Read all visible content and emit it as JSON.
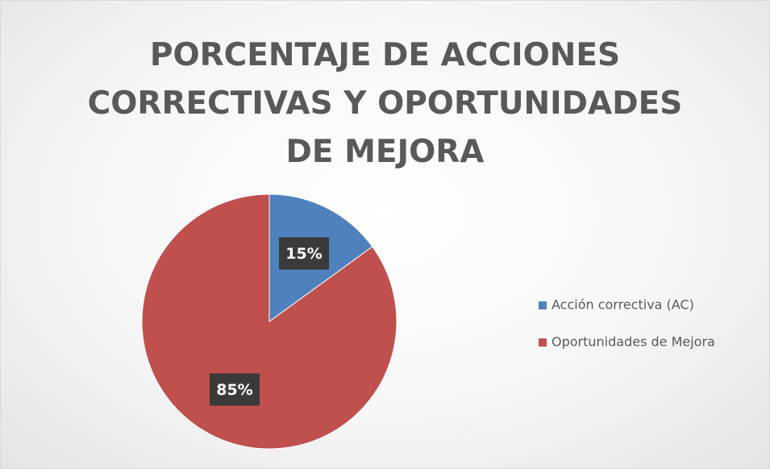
{
  "chart_data": {
    "type": "pie",
    "title": "PORCENTAJE DE ACCIONES CORRECTIVAS Y OPORTUNIDADES DE MEJORA",
    "categories": [
      "Acción correctiva (AC)",
      "Oportunidades de Mejora"
    ],
    "values": [
      15,
      85
    ],
    "value_labels": [
      "15%",
      "85%"
    ],
    "colors": [
      "#4f81bd",
      "#c0504d"
    ],
    "legend": "right"
  }
}
